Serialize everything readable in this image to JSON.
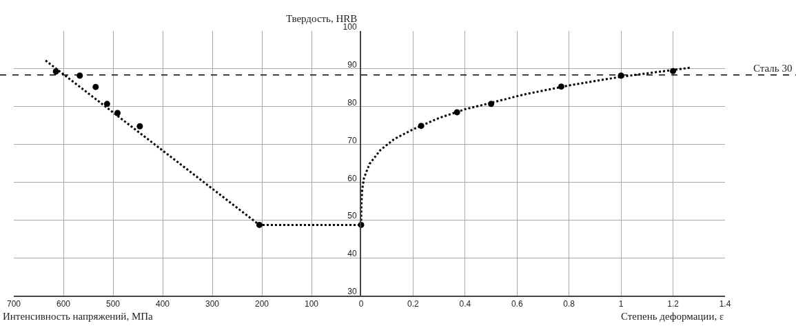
{
  "chart_data": [
    {
      "type": "scatter",
      "xlabel": "Интенсивность напряжений, МПа",
      "xlim": [
        700,
        0
      ],
      "xticks": [
        700,
        600,
        500,
        400,
        300,
        200,
        100,
        0
      ],
      "ylim": [
        30,
        100
      ],
      "yticks": [
        30,
        40,
        50,
        60,
        70,
        80,
        90,
        100
      ],
      "grid": true,
      "tick_labels": "x",
      "series": [
        {
          "type": "line",
          "color": "#000000",
          "line_style": "dotted",
          "marker": "none",
          "x": [
            636,
            205,
            0
          ],
          "values": [
            92.2,
            48.7,
            48.7
          ]
        },
        {
          "type": "scatter",
          "color": "#000000",
          "marker": "circle",
          "x": [
            615,
            567,
            535,
            512,
            491,
            446,
            205,
            0
          ],
          "values": [
            89.3,
            88.2,
            85.2,
            80.7,
            78.3,
            74.8,
            48.7,
            48.7
          ]
        }
      ],
      "ref_lines": [
        {
          "axis": "y",
          "value": 88.4,
          "line_style": "dashed",
          "color": "#000000"
        }
      ]
    },
    {
      "type": "scatter",
      "ylabel": "Твердость, HRB",
      "xlabel": "Степень деформации, ε",
      "xlim": [
        0,
        1.4
      ],
      "xticks": [
        0.2,
        0.4,
        0.6,
        0.8,
        1,
        1.2,
        1.4
      ],
      "ylim": [
        30,
        100
      ],
      "yticks": [
        30,
        40,
        50,
        60,
        70,
        80,
        90,
        100
      ],
      "grid": true,
      "series": [
        {
          "type": "line",
          "color": "#000000",
          "line_style": "dotted",
          "marker": "none",
          "x": [
            0,
            0.001,
            0.004,
            0.011,
            0.032,
            0.074,
            0.127,
            0.2,
            0.3,
            0.4,
            0.5,
            0.626,
            0.8,
            1.0,
            1.267
          ],
          "values": [
            48.7,
            54,
            58,
            61.1,
            64.8,
            68.5,
            71.4,
            74,
            77,
            79.3,
            81,
            83.2,
            85.6,
            87.9,
            90.3
          ]
        },
        {
          "type": "scatter",
          "color": "#000000",
          "marker": "circle",
          "x": [
            0.231,
            0.369,
            0.5,
            0.77,
            1.0,
            1.2
          ],
          "values": [
            74.9,
            78.5,
            80.7,
            85.3,
            88.2,
            89.4
          ]
        }
      ],
      "ref_lines": [
        {
          "axis": "y",
          "value": 88.4,
          "label": "Сталь 30",
          "line_style": "dashed",
          "color": "#000000"
        }
      ]
    }
  ]
}
